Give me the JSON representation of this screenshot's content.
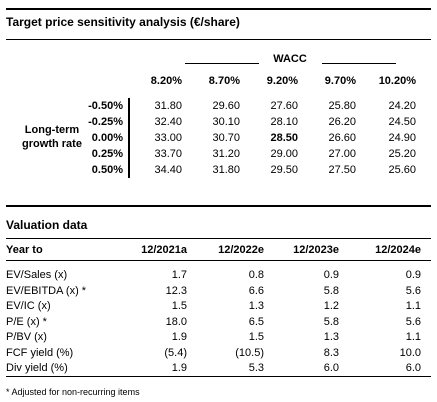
{
  "sensitivity": {
    "title": "Target price sensitivity analysis (€/share)",
    "column_header": "WACC",
    "columns": [
      "8.20%",
      "8.70%",
      "9.20%",
      "9.70%",
      "10.20%"
    ],
    "row_header": [
      "Long-term",
      "growth rate"
    ],
    "rows": [
      {
        "label": "-0.50%",
        "cells": [
          "31.80",
          "29.60",
          "27.60",
          "25.80",
          "24.20"
        ]
      },
      {
        "label": "-0.25%",
        "cells": [
          "32.40",
          "30.10",
          "28.10",
          "26.20",
          "24.50"
        ]
      },
      {
        "label": "0.00%",
        "cells": [
          "33.00",
          "30.70",
          "28.50",
          "26.60",
          "24.90"
        ]
      },
      {
        "label": "0.25%",
        "cells": [
          "33.70",
          "31.20",
          "29.00",
          "27.00",
          "25.20"
        ]
      },
      {
        "label": "0.50%",
        "cells": [
          "34.40",
          "31.80",
          "29.50",
          "27.50",
          "25.60"
        ]
      }
    ]
  },
  "valuation": {
    "title": "Valuation data",
    "header": [
      "Year to",
      "12/2021a",
      "12/2022e",
      "12/2023e",
      "12/2024e"
    ],
    "rows": [
      [
        "EV/Sales (x)",
        "1.7",
        "0.8",
        "0.9",
        "0.9"
      ],
      [
        "EV/EBITDA (x) *",
        "12.3",
        "6.6",
        "5.8",
        "5.6"
      ],
      [
        "EV/IC (x)",
        "1.5",
        "1.3",
        "1.2",
        "1.1"
      ],
      [
        "P/E (x) *",
        "18.0",
        "6.5",
        "5.8",
        "5.6"
      ],
      [
        "P/BV (x)",
        "1.9",
        "1.5",
        "1.3",
        "1.1"
      ],
      [
        "FCF yield (%)",
        "(5.4)",
        "(10.5)",
        "8.3",
        "10.0"
      ],
      [
        "Div yield (%)",
        "1.9",
        "5.3",
        "6.0",
        "6.0"
      ]
    ],
    "footnote": "* Adjusted for non-recurring items"
  }
}
